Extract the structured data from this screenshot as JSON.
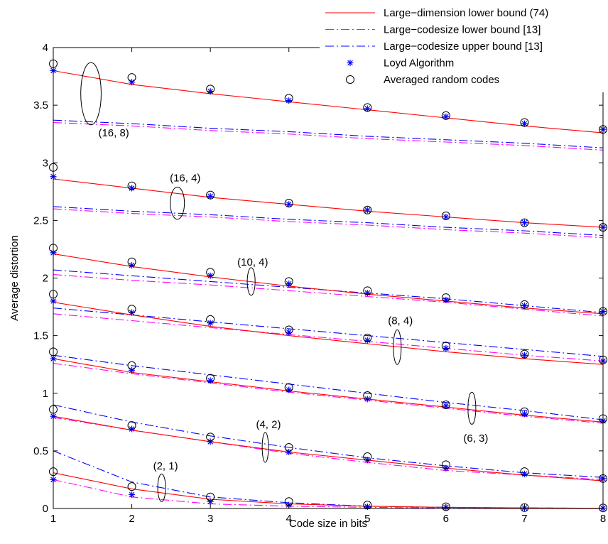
{
  "chart_data": {
    "type": "line",
    "title": "",
    "xlabel": "Code size in bits",
    "ylabel": "Average distortion",
    "xlim": [
      1,
      8
    ],
    "ylim": [
      0,
      4
    ],
    "xticks": [
      1,
      2,
      3,
      4,
      5,
      6,
      7,
      8
    ],
    "yticks": [
      0,
      0.5,
      1,
      1.5,
      2,
      2.5,
      3,
      3.5,
      4
    ],
    "ytick_labels": [
      "0",
      "0.5",
      "1",
      "1.5",
      "2",
      "2.5",
      "3",
      "3.5",
      "4"
    ],
    "x": [
      1,
      2,
      3,
      4,
      5,
      6,
      7,
      8
    ],
    "legend": {
      "position": "top-right",
      "entries": [
        {
          "label": "Large−dimension lower bound (74)",
          "style": "solid-line",
          "color": "#ff0000"
        },
        {
          "label": "Large−codesize lower bound [13]",
          "style": "dash-dot-line",
          "color": "#ff00ff"
        },
        {
          "label": "Large−codesize upper bound [13]",
          "style": "dash-dot-line",
          "color": "#0000ff"
        },
        {
          "label": "Loyd Algorithm",
          "style": "star-marker",
          "color": "#0000ff"
        },
        {
          "label": "Averaged random codes",
          "style": "circle-marker",
          "color": "#000000"
        }
      ]
    },
    "groups": [
      {
        "label": "(16, 8)",
        "dimension_lower": [
          3.8,
          3.68,
          3.6,
          3.53,
          3.46,
          3.39,
          3.32,
          3.26
        ],
        "codesize_lower": [
          3.35,
          3.32,
          3.28,
          3.25,
          3.21,
          3.18,
          3.15,
          3.11
        ],
        "codesize_upper": [
          3.37,
          3.34,
          3.3,
          3.27,
          3.23,
          3.2,
          3.17,
          3.13
        ],
        "lloyd": [
          3.8,
          3.7,
          3.62,
          3.54,
          3.47,
          3.4,
          3.34,
          3.29
        ],
        "random": [
          3.86,
          3.74,
          3.64,
          3.56,
          3.48,
          3.41,
          3.35,
          3.29
        ]
      },
      {
        "label": "(16, 4)",
        "dimension_lower": [
          2.86,
          2.78,
          2.7,
          2.64,
          2.58,
          2.53,
          2.48,
          2.44
        ],
        "codesize_lower": [
          2.6,
          2.56,
          2.53,
          2.49,
          2.46,
          2.42,
          2.39,
          2.35
        ],
        "codesize_upper": [
          2.62,
          2.58,
          2.55,
          2.51,
          2.48,
          2.44,
          2.41,
          2.37
        ],
        "lloyd": [
          2.88,
          2.78,
          2.71,
          2.64,
          2.59,
          2.53,
          2.48,
          2.44
        ],
        "random": [
          2.96,
          2.8,
          2.72,
          2.65,
          2.59,
          2.54,
          2.48,
          2.44
        ]
      },
      {
        "label": "(10, 4)",
        "dimension_lower": [
          2.21,
          2.1,
          2.01,
          1.93,
          1.86,
          1.8,
          1.74,
          1.69
        ],
        "codesize_lower": [
          2.03,
          1.98,
          1.94,
          1.89,
          1.84,
          1.79,
          1.73,
          1.67
        ],
        "codesize_upper": [
          2.07,
          2.02,
          1.97,
          1.92,
          1.87,
          1.82,
          1.76,
          1.7
        ],
        "lloyd": [
          2.22,
          2.11,
          2.02,
          1.95,
          1.87,
          1.81,
          1.76,
          1.71
        ],
        "random": [
          2.26,
          2.14,
          2.05,
          1.97,
          1.89,
          1.83,
          1.77,
          1.71
        ]
      },
      {
        "label": "(8, 4)",
        "dimension_lower": [
          1.79,
          1.68,
          1.58,
          1.5,
          1.43,
          1.36,
          1.3,
          1.25
        ],
        "codesize_lower": [
          1.69,
          1.63,
          1.57,
          1.51,
          1.45,
          1.39,
          1.33,
          1.28
        ],
        "codesize_upper": [
          1.74,
          1.68,
          1.62,
          1.56,
          1.5,
          1.44,
          1.38,
          1.32
        ],
        "lloyd": [
          1.8,
          1.7,
          1.61,
          1.53,
          1.46,
          1.39,
          1.33,
          1.28
        ],
        "random": [
          1.86,
          1.73,
          1.64,
          1.55,
          1.48,
          1.41,
          1.34,
          1.29
        ]
      },
      {
        "label": "(6, 3)",
        "dimension_lower": [
          1.3,
          1.18,
          1.1,
          1.02,
          0.95,
          0.88,
          0.81,
          0.75
        ],
        "codesize_lower": [
          1.26,
          1.17,
          1.09,
          1.01,
          0.94,
          0.87,
          0.8,
          0.74
        ],
        "codesize_upper": [
          1.33,
          1.24,
          1.16,
          1.08,
          1.0,
          0.92,
          0.85,
          0.77
        ],
        "lloyd": [
          1.3,
          1.2,
          1.11,
          1.03,
          0.95,
          0.89,
          0.82,
          0.76
        ],
        "random": [
          1.36,
          1.24,
          1.13,
          1.05,
          0.98,
          0.9,
          0.84,
          0.78
        ]
      },
      {
        "label": "(4, 2)",
        "dimension_lower": [
          0.8,
          0.68,
          0.58,
          0.49,
          0.42,
          0.35,
          0.29,
          0.24
        ],
        "codesize_lower": [
          0.79,
          0.68,
          0.58,
          0.48,
          0.4,
          0.33,
          0.29,
          0.25
        ],
        "codesize_upper": [
          0.9,
          0.75,
          0.63,
          0.53,
          0.44,
          0.37,
          0.31,
          0.27
        ],
        "lloyd": [
          0.8,
          0.69,
          0.58,
          0.49,
          0.42,
          0.35,
          0.3,
          0.26
        ],
        "random": [
          0.86,
          0.72,
          0.62,
          0.53,
          0.45,
          0.38,
          0.32,
          0.26
        ]
      },
      {
        "label": "(2, 1)",
        "dimension_lower": [
          0.31,
          0.17,
          0.08,
          0.04,
          0.02,
          0.01,
          0.005,
          0.002
        ],
        "codesize_lower": [
          0.25,
          0.1,
          0.04,
          0.02,
          0.01,
          0.005,
          0.002,
          0.001
        ],
        "codesize_upper": [
          0.5,
          0.23,
          0.1,
          0.05,
          0.02,
          0.01,
          0.005,
          0.002
        ],
        "lloyd": [
          0.25,
          0.12,
          0.06,
          0.03,
          0.015,
          0.01,
          0.005,
          0.003
        ],
        "random": [
          0.32,
          0.19,
          0.1,
          0.06,
          0.03,
          0.015,
          0.008,
          0.005
        ]
      }
    ],
    "annotations": [
      {
        "text": "(16, 8)",
        "text_x": 1.77,
        "text_y": 3.26,
        "ellipse_x": 1.48,
        "ellipse_y": 3.6,
        "ellipse_rx": 0.13,
        "ellipse_ry": 0.27
      },
      {
        "text": "(16, 4)",
        "text_x": 2.68,
        "text_y": 2.87,
        "ellipse_x": 2.58,
        "ellipse_y": 2.65,
        "ellipse_rx": 0.09,
        "ellipse_ry": 0.14
      },
      {
        "text": "(10, 4)",
        "text_x": 3.54,
        "text_y": 2.14,
        "ellipse_x": 3.52,
        "ellipse_y": 1.97,
        "ellipse_rx": 0.05,
        "ellipse_ry": 0.12
      },
      {
        "text": "(8, 4)",
        "text_x": 5.42,
        "text_y": 1.63,
        "ellipse_x": 5.38,
        "ellipse_y": 1.4,
        "ellipse_rx": 0.05,
        "ellipse_ry": 0.15
      },
      {
        "text": "(6, 3)",
        "text_x": 6.38,
        "text_y": 0.61,
        "ellipse_x": 6.33,
        "ellipse_y": 0.87,
        "ellipse_rx": 0.05,
        "ellipse_ry": 0.14
      },
      {
        "text": "(4, 2)",
        "text_x": 3.74,
        "text_y": 0.73,
        "ellipse_x": 3.7,
        "ellipse_y": 0.53,
        "ellipse_rx": 0.04,
        "ellipse_ry": 0.13
      },
      {
        "text": "(2, 1)",
        "text_x": 2.43,
        "text_y": 0.37,
        "ellipse_x": 2.38,
        "ellipse_y": 0.18,
        "ellipse_rx": 0.05,
        "ellipse_ry": 0.12
      }
    ],
    "colors": {
      "dimension_lower": "#ff0000",
      "codesize_lower": "#ff00ff",
      "codesize_upper": "#0000ff",
      "lloyd": "#0000ff",
      "random": "#000000"
    }
  }
}
